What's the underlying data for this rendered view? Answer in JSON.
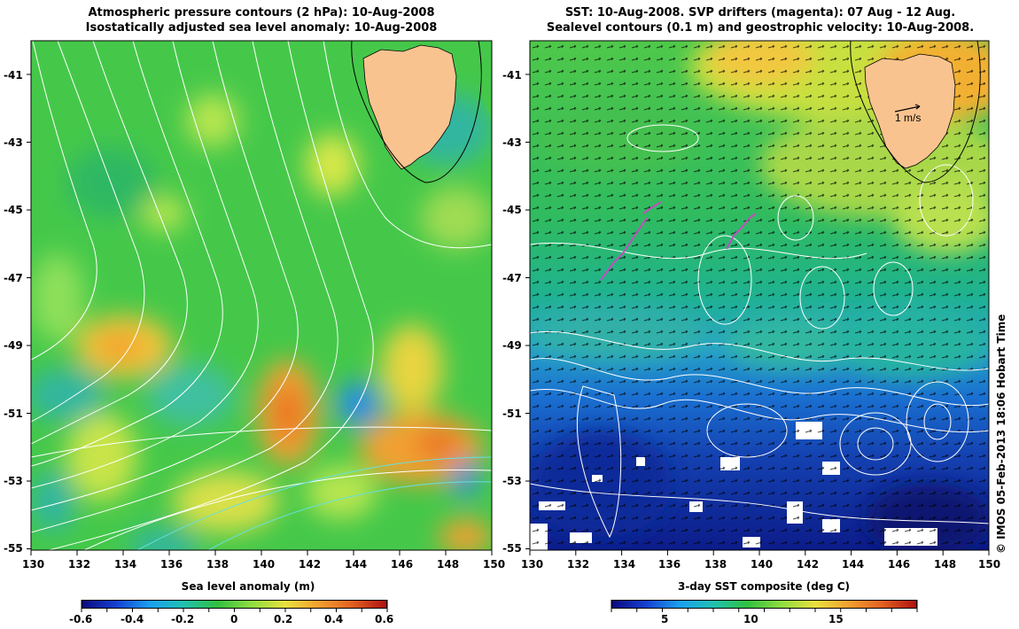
{
  "left_map": {
    "title_line1": "Atmospheric pressure contours (2 hPa): 10-Aug-2008",
    "title_line2": "Isostatically adjusted sea level anomaly: 10-Aug-2008",
    "colorbar_title": "Sea level anomaly (m)",
    "colorbar_ticks": [
      "-0.6",
      "-0.4",
      "-0.2",
      "0",
      "0.2",
      "0.4",
      "0.6"
    ],
    "colorbar_range": [
      -0.6,
      0.6
    ]
  },
  "right_map": {
    "title_line1": "SST: 10-Aug-2008. SVP drifters (magenta): 07 Aug - 12 Aug.",
    "title_line2": "Sealevel contours (0.1 m) and geostrophic velocity: 10-Aug-2008.",
    "colorbar_title": "3-day SST composite (deg C)",
    "colorbar_ticks": [
      "5",
      "10",
      "15"
    ],
    "colorbar_range": [
      2,
      20
    ],
    "scale_arrow_label": "1 m/s"
  },
  "axes": {
    "lon_ticks": [
      "130",
      "132",
      "134",
      "136",
      "138",
      "140",
      "142",
      "144",
      "146",
      "148",
      "150"
    ],
    "lat_ticks": [
      "-41",
      "-43",
      "-45",
      "-47",
      "-49",
      "-51",
      "-53",
      "-55"
    ]
  },
  "credit": "© IMOS 05-Feb-2013 18:06 Hobart Time",
  "colors": {
    "land": "#f9c390",
    "contour_white": "#ffffff",
    "contour_cyan": "#66e0e0",
    "drifter_magenta": "#c050c0"
  }
}
